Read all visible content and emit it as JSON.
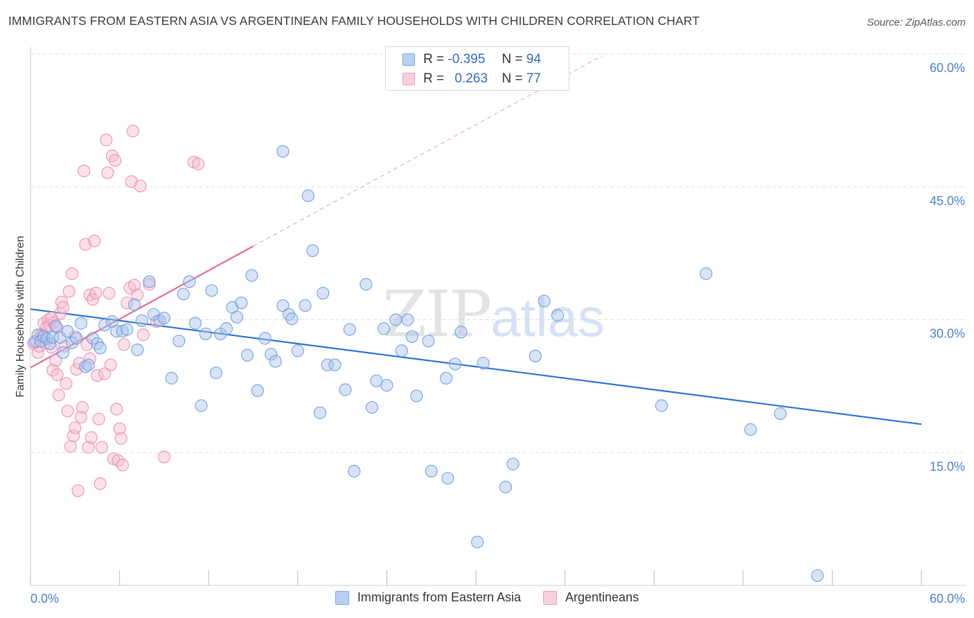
{
  "header": {
    "title": "IMMIGRANTS FROM EASTERN ASIA VS ARGENTINEAN FAMILY HOUSEHOLDS WITH CHILDREN CORRELATION CHART",
    "source": "Source: ZipAtlas.com"
  },
  "watermark": {
    "zip": "ZIP",
    "atlas": "atlas"
  },
  "legend": {
    "rows": [
      {
        "r_label": "R =",
        "r_value": "-0.395",
        "n_label": "N =",
        "n_value": "94"
      },
      {
        "r_label": "R =",
        "r_value": "0.263",
        "n_label": "N =",
        "n_value": "77"
      }
    ]
  },
  "bottom_legend": {
    "series_a": "Immigrants from Eastern Asia",
    "series_b": "Argentineans"
  },
  "colors": {
    "blue_fill": "#a8c4ec",
    "blue_stroke": "#6d9ee0",
    "blue_line": "#2f72d4",
    "pink_fill": "#f6bdd0",
    "pink_stroke": "#ea8fb0",
    "pink_line": "#e46a94",
    "grid": "#dddddd",
    "axis_text": "#4a7fd0"
  },
  "chart_data": {
    "type": "scatter",
    "title": "IMMIGRANTS FROM EASTERN ASIA VS ARGENTINEAN FAMILY HOUSEHOLDS WITH CHILDREN CORRELATION CHART",
    "xlabel": "",
    "ylabel": "Family Households with Children",
    "xlim": [
      0,
      60
    ],
    "ylim": [
      0,
      60
    ],
    "x_tick_labels": [
      "0.0%",
      "60.0%"
    ],
    "y_tick_labels": [
      "15.0%",
      "30.0%",
      "45.0%",
      "60.0%"
    ],
    "y_ticks": [
      15,
      30,
      45,
      60
    ],
    "series": [
      {
        "name": "Immigrants from Eastern Asia",
        "color": "blue",
        "R": -0.395,
        "N": 94,
        "trend": {
          "x": [
            0,
            60
          ],
          "y": [
            31.2,
            18.2
          ]
        },
        "points": [
          [
            0.3,
            27.5
          ],
          [
            0.5,
            28.3
          ],
          [
            0.7,
            27.6
          ],
          [
            0.9,
            28.1
          ],
          [
            1.1,
            27.9
          ],
          [
            1.3,
            27.3
          ],
          [
            1.5,
            28.0
          ],
          [
            1.7,
            29.3
          ],
          [
            2.0,
            28.0
          ],
          [
            2.2,
            26.3
          ],
          [
            2.5,
            28.7
          ],
          [
            2.8,
            27.4
          ],
          [
            3.1,
            27.9
          ],
          [
            3.4,
            29.6
          ],
          [
            3.7,
            24.7
          ],
          [
            3.9,
            24.9
          ],
          [
            4.2,
            27.9
          ],
          [
            4.5,
            27.3
          ],
          [
            4.7,
            26.8
          ],
          [
            5.0,
            29.4
          ],
          [
            5.5,
            29.8
          ],
          [
            5.8,
            28.7
          ],
          [
            6.2,
            28.7
          ],
          [
            6.5,
            28.9
          ],
          [
            7.0,
            31.7
          ],
          [
            7.2,
            26.6
          ],
          [
            7.5,
            29.9
          ],
          [
            8.0,
            34.3
          ],
          [
            8.3,
            30.6
          ],
          [
            8.7,
            29.9
          ],
          [
            9.0,
            30.2
          ],
          [
            9.5,
            23.4
          ],
          [
            10.0,
            27.6
          ],
          [
            10.3,
            32.9
          ],
          [
            10.7,
            34.3
          ],
          [
            11.1,
            29.6
          ],
          [
            11.5,
            20.3
          ],
          [
            11.8,
            28.4
          ],
          [
            12.2,
            33.3
          ],
          [
            12.5,
            24.0
          ],
          [
            12.8,
            28.4
          ],
          [
            13.2,
            29.0
          ],
          [
            13.6,
            31.4
          ],
          [
            13.9,
            30.3
          ],
          [
            14.2,
            31.9
          ],
          [
            14.6,
            26.0
          ],
          [
            14.9,
            35.0
          ],
          [
            15.3,
            22.0
          ],
          [
            15.8,
            27.9
          ],
          [
            16.2,
            26.1
          ],
          [
            16.5,
            25.3
          ],
          [
            17.0,
            31.6
          ],
          [
            17.4,
            30.6
          ],
          [
            17.6,
            30.1
          ],
          [
            18.0,
            26.5
          ],
          [
            18.5,
            31.6
          ],
          [
            18.7,
            44.0
          ],
          [
            19.0,
            37.8
          ],
          [
            19.5,
            19.5
          ],
          [
            19.7,
            33.0
          ],
          [
            20.0,
            24.9
          ],
          [
            20.5,
            24.9
          ],
          [
            21.2,
            22.1
          ],
          [
            21.5,
            28.9
          ],
          [
            21.8,
            12.9
          ],
          [
            22.6,
            34.0
          ],
          [
            23.0,
            20.1
          ],
          [
            23.3,
            23.1
          ],
          [
            23.8,
            29.0
          ],
          [
            24.0,
            22.6
          ],
          [
            24.6,
            30.0
          ],
          [
            25.0,
            26.5
          ],
          [
            25.4,
            30.0
          ],
          [
            25.7,
            28.1
          ],
          [
            26.0,
            21.4
          ],
          [
            26.8,
            27.6
          ],
          [
            27.0,
            12.9
          ],
          [
            28.0,
            23.4
          ],
          [
            28.1,
            12.1
          ],
          [
            28.6,
            25.0
          ],
          [
            29.0,
            28.6
          ],
          [
            30.1,
            4.9
          ],
          [
            30.5,
            25.1
          ],
          [
            32.0,
            11.1
          ],
          [
            32.5,
            13.7
          ],
          [
            34.0,
            25.9
          ],
          [
            34.6,
            32.1
          ],
          [
            35.5,
            30.5
          ],
          [
            42.5,
            20.3
          ],
          [
            45.5,
            35.2
          ],
          [
            48.5,
            17.6
          ],
          [
            50.5,
            19.4
          ],
          [
            53.0,
            1.1
          ],
          [
            17.0,
            49.0
          ]
        ]
      },
      {
        "name": "Argentineans",
        "color": "pink",
        "R": 0.263,
        "N": 77,
        "trend": {
          "x": [
            0,
            15
          ],
          "y": [
            24.6,
            38.3
          ]
        },
        "trend_extended": {
          "x": [
            15,
            38.5
          ],
          "y": [
            38.3,
            59.8
          ]
        },
        "points": [
          [
            0.2,
            27.3
          ],
          [
            0.4,
            27.6
          ],
          [
            0.5,
            26.3
          ],
          [
            0.7,
            28.3
          ],
          [
            0.8,
            28.2
          ],
          [
            0.9,
            29.6
          ],
          [
            1.0,
            27.4
          ],
          [
            1.1,
            29.2
          ],
          [
            1.2,
            30.0
          ],
          [
            1.3,
            29.4
          ],
          [
            1.4,
            26.9
          ],
          [
            1.5,
            24.3
          ],
          [
            1.6,
            29.7
          ],
          [
            1.7,
            25.4
          ],
          [
            1.8,
            23.8
          ],
          [
            1.9,
            21.5
          ],
          [
            2.0,
            30.7
          ],
          [
            2.1,
            32.0
          ],
          [
            2.2,
            31.4
          ],
          [
            2.4,
            22.8
          ],
          [
            2.5,
            19.7
          ],
          [
            2.6,
            33.2
          ],
          [
            2.7,
            15.7
          ],
          [
            2.8,
            35.2
          ],
          [
            2.9,
            16.9
          ],
          [
            3.0,
            17.8
          ],
          [
            3.1,
            24.4
          ],
          [
            3.2,
            10.7
          ],
          [
            3.3,
            25.1
          ],
          [
            3.4,
            19.0
          ],
          [
            3.5,
            20.1
          ],
          [
            3.6,
            46.8
          ],
          [
            3.7,
            38.5
          ],
          [
            3.8,
            27.2
          ],
          [
            3.9,
            15.6
          ],
          [
            4.0,
            32.8
          ],
          [
            4.1,
            16.7
          ],
          [
            4.2,
            32.3
          ],
          [
            4.3,
            38.9
          ],
          [
            4.4,
            33.0
          ],
          [
            4.5,
            23.7
          ],
          [
            4.6,
            18.8
          ],
          [
            4.7,
            11.5
          ],
          [
            4.8,
            15.6
          ],
          [
            5.0,
            23.9
          ],
          [
            5.1,
            50.3
          ],
          [
            5.2,
            46.6
          ],
          [
            5.3,
            33.0
          ],
          [
            5.4,
            24.9
          ],
          [
            5.5,
            48.5
          ],
          [
            5.6,
            14.3
          ],
          [
            5.7,
            48.0
          ],
          [
            5.8,
            19.9
          ],
          [
            5.9,
            14.1
          ],
          [
            6.0,
            17.7
          ],
          [
            6.1,
            16.6
          ],
          [
            6.2,
            13.6
          ],
          [
            6.3,
            27.2
          ],
          [
            6.5,
            31.9
          ],
          [
            6.7,
            33.6
          ],
          [
            6.8,
            45.6
          ],
          [
            6.9,
            51.3
          ],
          [
            7.0,
            33.9
          ],
          [
            7.2,
            32.8
          ],
          [
            7.4,
            45.1
          ],
          [
            7.6,
            28.3
          ],
          [
            8.0,
            34.0
          ],
          [
            8.5,
            29.8
          ],
          [
            9.0,
            14.5
          ],
          [
            11.0,
            47.8
          ],
          [
            11.3,
            47.6
          ],
          [
            1.4,
            30.2
          ],
          [
            2.3,
            27.0
          ],
          [
            3.0,
            28.1
          ],
          [
            4.0,
            25.6
          ],
          [
            0.6,
            27.0
          ],
          [
            1.8,
            29.1
          ]
        ]
      }
    ]
  }
}
